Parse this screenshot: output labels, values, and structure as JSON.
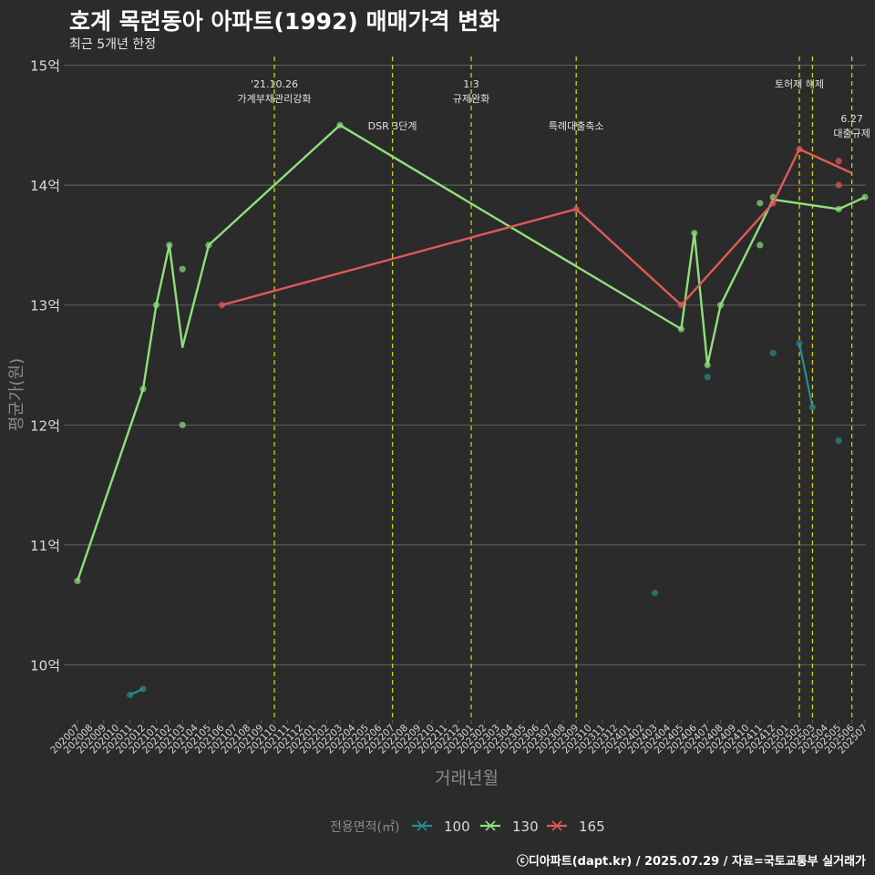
{
  "title": "호계 목련동아 아파트(1992) 매매가격 변화",
  "subtitle": "최근 5개년 한정",
  "footer": "ⓒ디아파트(dapt.kr) / 2025.07.29 / 자료=국토교통부 실거래가",
  "colors": {
    "background": "#2b2b2b",
    "grid": "#5a5a5a",
    "event_line": "#d4d400",
    "s100": "#2a8c8c",
    "s130": "#8ee07a",
    "s165": "#e05a5a",
    "text": "#d9d9d9",
    "axis_title": "#8a8a8a"
  },
  "chart_data": {
    "type": "line",
    "title": "호계 목련동아 아파트(1992) 매매가격 변화",
    "subtitle": "최근 5개년 한정",
    "xlabel": "거래년월",
    "ylabel": "평균가(원)",
    "ylim": [
      9.5,
      15.0
    ],
    "yticks": [
      10,
      11,
      12,
      13,
      14,
      15
    ],
    "ytick_labels": [
      "10억",
      "11억",
      "12억",
      "13억",
      "14억",
      "15억"
    ],
    "grid": true,
    "legend_position": "bottom",
    "legend_title": "전용면적(㎡)",
    "categories": [
      "202007",
      "202008",
      "202009",
      "202010",
      "202011",
      "202012",
      "202101",
      "202102",
      "202103",
      "202104",
      "202105",
      "202106",
      "202107",
      "202108",
      "202109",
      "202110",
      "202111",
      "202112",
      "202201",
      "202202",
      "202203",
      "202204",
      "202205",
      "202206",
      "202207",
      "202208",
      "202209",
      "202210",
      "202211",
      "202212",
      "202301",
      "202302",
      "202303",
      "202304",
      "202305",
      "202306",
      "202307",
      "202308",
      "202309",
      "202310",
      "202311",
      "202312",
      "202401",
      "202402",
      "202403",
      "202404",
      "202405",
      "202406",
      "202407",
      "202408",
      "202409",
      "202410",
      "202411",
      "202412",
      "202501",
      "202502",
      "202503",
      "202504",
      "202505",
      "202506",
      "202507"
    ],
    "series": [
      {
        "name": "100",
        "color": "#2a8c8c",
        "line": [
          [
            "202011",
            9.75
          ],
          [
            "202012",
            9.8
          ],
          [
            "202502",
            12.68
          ],
          [
            "202503",
            12.15
          ]
        ],
        "points": [
          [
            "202011",
            9.75
          ],
          [
            "202012",
            9.8
          ],
          [
            "202403",
            10.6
          ],
          [
            "202407",
            12.4
          ],
          [
            "202412",
            12.6
          ],
          [
            "202502",
            12.68
          ],
          [
            "202503",
            12.15
          ],
          [
            "202505",
            11.87
          ]
        ]
      },
      {
        "name": "130",
        "color": "#8ee07a",
        "line": [
          [
            "202007",
            10.7
          ],
          [
            "202012",
            12.3
          ],
          [
            "202101",
            13.0
          ],
          [
            "202102",
            13.5
          ],
          [
            "202103",
            12.65
          ],
          [
            "202105",
            13.5
          ],
          [
            "202203",
            14.5
          ],
          [
            "202405",
            12.8
          ],
          [
            "202406",
            13.6
          ],
          [
            "202407",
            12.5
          ],
          [
            "202408",
            13.0
          ],
          [
            "202412",
            13.88
          ],
          [
            "202505",
            13.8
          ],
          [
            "202507",
            13.9
          ]
        ],
        "points": [
          [
            "202007",
            10.7
          ],
          [
            "202012",
            12.3
          ],
          [
            "202101",
            13.0
          ],
          [
            "202102",
            13.5
          ],
          [
            "202103",
            13.3
          ],
          [
            "202103",
            12.0
          ],
          [
            "202105",
            13.5
          ],
          [
            "202203",
            14.5
          ],
          [
            "202405",
            12.8
          ],
          [
            "202406",
            13.6
          ],
          [
            "202407",
            12.5
          ],
          [
            "202408",
            13.0
          ],
          [
            "202411",
            13.5
          ],
          [
            "202411",
            13.85
          ],
          [
            "202412",
            13.9
          ],
          [
            "202505",
            13.8
          ],
          [
            "202507",
            13.9
          ]
        ]
      },
      {
        "name": "165",
        "color": "#e05a5a",
        "line": [
          [
            "202106",
            13.0
          ],
          [
            "202309",
            13.8
          ],
          [
            "202405",
            13.0
          ],
          [
            "202412",
            13.85
          ],
          [
            "202502",
            14.3
          ],
          [
            "202506",
            14.1
          ]
        ],
        "points": [
          [
            "202106",
            13.0
          ],
          [
            "202309",
            13.8
          ],
          [
            "202405",
            13.0
          ],
          [
            "202412",
            13.85
          ],
          [
            "202502",
            14.3
          ],
          [
            "202505",
            14.2
          ],
          [
            "202505",
            14.0
          ]
        ]
      }
    ],
    "events": [
      {
        "x": "202110",
        "lines": [
          "'21.10.26",
          "가계부채관리강화"
        ],
        "level": 0
      },
      {
        "x": "202207",
        "lines": [
          "DSR 3단계"
        ],
        "level": 1
      },
      {
        "x": "202301",
        "lines": [
          "1.3",
          "규제완화"
        ],
        "level": 0
      },
      {
        "x": "202309",
        "lines": [
          "특례대출축소"
        ],
        "level": 1
      },
      {
        "x": "202502",
        "lines": [
          "토허제 해제"
        ],
        "level": 0
      },
      {
        "x": "202503",
        "lines": [],
        "level": 0
      },
      {
        "x": "202506",
        "lines": [
          "6.27",
          "대출규제"
        ],
        "level": 2
      }
    ]
  }
}
